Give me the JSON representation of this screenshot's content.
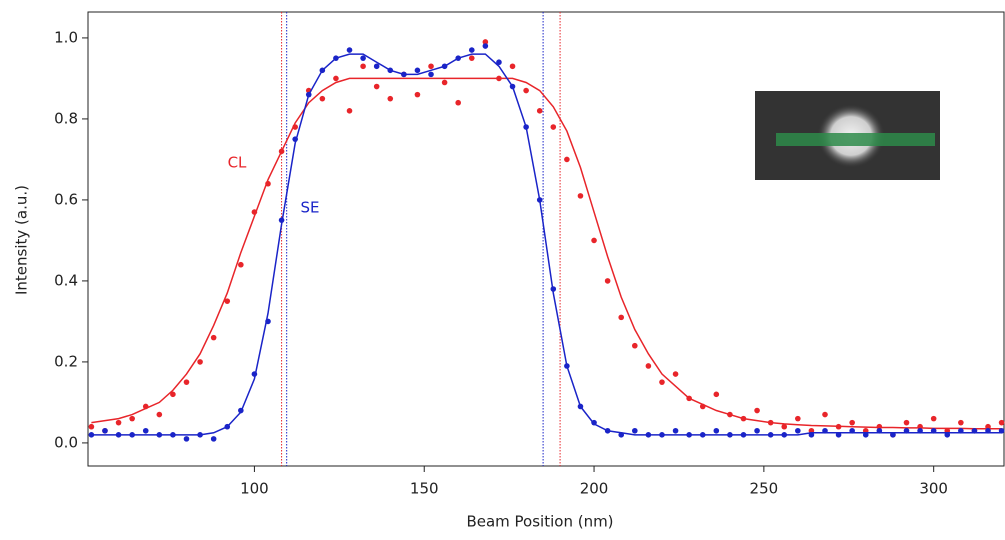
{
  "chart_data": {
    "type": "scatter",
    "xlabel": "Beam Position (nm)",
    "ylabel": "Intensity (a.u.)",
    "xlim": [
      51,
      321
    ],
    "ylim": [
      -0.057,
      1.064
    ],
    "xticks": [
      100,
      150,
      200,
      250,
      300
    ],
    "yticks": [
      {
        "value": 0,
        "label": "0.0"
      },
      0.2,
      0.4,
      0.6,
      0.8,
      {
        "value": 1,
        "label": "1.0"
      }
    ],
    "x": [
      52,
      56,
      60,
      64,
      68,
      72,
      76,
      80,
      84,
      88,
      92,
      96,
      100,
      104,
      108,
      112,
      116,
      120,
      124,
      128,
      132,
      136,
      140,
      144,
      148,
      152,
      156,
      160,
      164,
      168,
      172,
      176,
      180,
      184,
      188,
      192,
      196,
      200,
      204,
      208,
      212,
      216,
      220,
      224,
      228,
      232,
      236,
      240,
      244,
      248,
      252,
      256,
      260,
      264,
      268,
      272,
      276,
      280,
      284,
      288,
      292,
      296,
      300,
      304,
      308,
      312,
      316,
      320
    ],
    "series": [
      {
        "name": "CL",
        "color": "#e8252a",
        "values": [
          0.04,
          0.03,
          0.05,
          0.06,
          0.09,
          0.07,
          0.12,
          0.15,
          0.2,
          0.26,
          0.35,
          0.44,
          0.57,
          0.64,
          0.72,
          0.78,
          0.87,
          0.85,
          0.9,
          0.82,
          0.93,
          0.88,
          0.85,
          0.91,
          0.86,
          0.93,
          0.89,
          0.84,
          0.95,
          0.99,
          0.9,
          0.93,
          0.87,
          0.82,
          0.78,
          0.7,
          0.61,
          0.5,
          0.4,
          0.31,
          0.24,
          0.19,
          0.15,
          0.17,
          0.11,
          0.09,
          0.12,
          0.07,
          0.06,
          0.08,
          0.05,
          0.04,
          0.06,
          0.03,
          0.07,
          0.04,
          0.05,
          0.03,
          0.04,
          0.02,
          0.05,
          0.04,
          0.06,
          0.03,
          0.05,
          0.03,
          0.04,
          0.05
        ],
        "fit": [
          0.05,
          0.055,
          0.06,
          0.07,
          0.085,
          0.1,
          0.13,
          0.17,
          0.22,
          0.29,
          0.37,
          0.47,
          0.56,
          0.65,
          0.72,
          0.79,
          0.84,
          0.87,
          0.89,
          0.9,
          0.9,
          0.9,
          0.9,
          0.9,
          0.9,
          0.9,
          0.9,
          0.9,
          0.9,
          0.9,
          0.9,
          0.9,
          0.89,
          0.87,
          0.83,
          0.77,
          0.68,
          0.57,
          0.46,
          0.36,
          0.28,
          0.22,
          0.17,
          0.14,
          0.11,
          0.095,
          0.08,
          0.07,
          0.06,
          0.055,
          0.05,
          0.047,
          0.045,
          0.043,
          0.042,
          0.041,
          0.04,
          0.039,
          0.038,
          0.038,
          0.037,
          0.037,
          0.036,
          0.036,
          0.036,
          0.035,
          0.035,
          0.035
        ]
      },
      {
        "name": "SE",
        "color": "#1a24c8",
        "values": [
          0.02,
          0.03,
          0.02,
          0.02,
          0.03,
          0.02,
          0.02,
          0.01,
          0.02,
          0.01,
          0.04,
          0.08,
          0.17,
          0.3,
          0.55,
          0.75,
          0.86,
          0.92,
          0.95,
          0.97,
          0.95,
          0.93,
          0.92,
          0.91,
          0.92,
          0.91,
          0.93,
          0.95,
          0.97,
          0.98,
          0.94,
          0.88,
          0.78,
          0.6,
          0.38,
          0.19,
          0.09,
          0.05,
          0.03,
          0.02,
          0.03,
          0.02,
          0.02,
          0.03,
          0.02,
          0.02,
          0.03,
          0.02,
          0.02,
          0.03,
          0.02,
          0.02,
          0.03,
          0.02,
          0.03,
          0.02,
          0.03,
          0.02,
          0.03,
          0.02,
          0.03,
          0.03,
          0.03,
          0.02,
          0.03,
          0.03,
          0.03,
          0.03
        ],
        "fit": [
          0.02,
          0.02,
          0.02,
          0.02,
          0.02,
          0.02,
          0.02,
          0.02,
          0.02,
          0.025,
          0.04,
          0.076,
          0.158,
          0.32,
          0.54,
          0.74,
          0.86,
          0.92,
          0.95,
          0.96,
          0.96,
          0.94,
          0.92,
          0.91,
          0.91,
          0.92,
          0.93,
          0.95,
          0.96,
          0.96,
          0.93,
          0.88,
          0.78,
          0.6,
          0.37,
          0.19,
          0.09,
          0.047,
          0.03,
          0.025,
          0.02,
          0.02,
          0.02,
          0.02,
          0.02,
          0.02,
          0.02,
          0.02,
          0.02,
          0.02,
          0.02,
          0.02,
          0.02,
          0.025,
          0.025,
          0.025,
          0.025,
          0.025,
          0.025,
          0.025,
          0.025,
          0.025,
          0.025,
          0.025,
          0.025,
          0.025,
          0.025,
          0.025
        ]
      }
    ],
    "markers": [
      {
        "value": 108,
        "color": "#e8252a"
      },
      {
        "value": 109.5,
        "color": "#1a24c8"
      },
      {
        "value": 185,
        "color": "#1a24c8"
      },
      {
        "value": 190,
        "color": "#e8252a"
      }
    ]
  }
}
